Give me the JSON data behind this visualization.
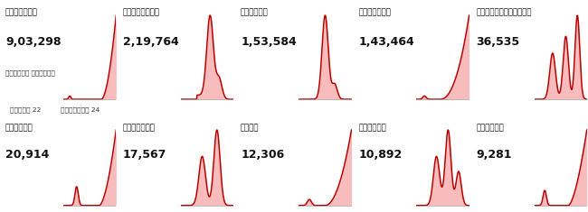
{
  "countries_row1": [
    {
      "name": "అమెరికా",
      "value": "9,03,298",
      "shape": "usa"
    },
    {
      "name": "స్పెయిన్",
      "value": "2,19,764",
      "shape": "spain"
    },
    {
      "name": "జర్మనీ",
      "value": "1,53,584",
      "shape": "germany"
    },
    {
      "name": "బ్రిటన్",
      "value": "1,43,464",
      "shape": "britain"
    },
    {
      "name": "నెదర్లాండ్స్",
      "value": "36,535",
      "shape": "netherlands"
    }
  ],
  "countries_row2": [
    {
      "name": "పెరువా",
      "value": "20,914",
      "shape": "peru"
    },
    {
      "name": "స్వీడన్",
      "value": "17,567",
      "shape": "sweden"
    },
    {
      "name": "చిలీ",
      "value": "12,306",
      "shape": "chile"
    },
    {
      "name": "పోలండ౏",
      "value": "10,892",
      "shape": "poland"
    },
    {
      "name": "యూపైసా",
      "value": "9,281",
      "shape": "ukraine"
    }
  ],
  "label_left": "జనవరి 22",
  "label_right": "ఏప్రిల౏ 24",
  "sublabel": "మొత్తం కేసులు",
  "line_color": "#bb0000",
  "fill_color": "#f8bcbc",
  "bg_color": "#ffffff",
  "text_color": "#111111"
}
